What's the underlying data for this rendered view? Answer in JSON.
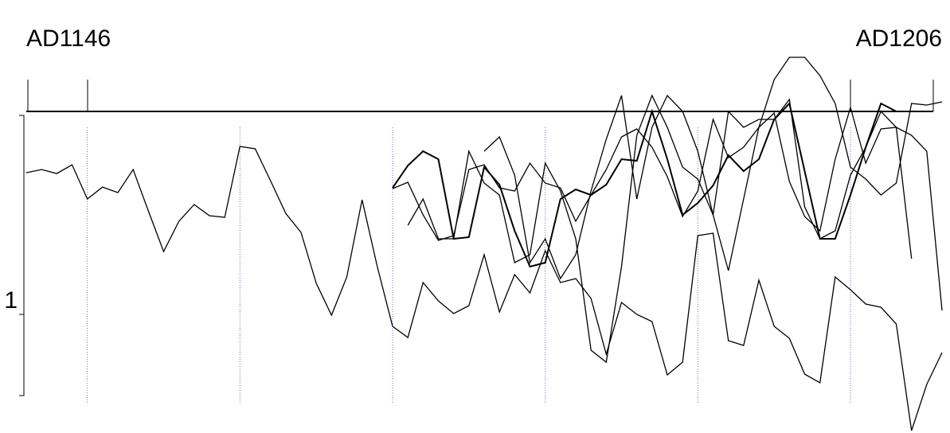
{
  "chart_data": {
    "type": "line",
    "left_label": "AD1146",
    "right_label": "AD1206",
    "x": [
      1146,
      1147,
      1148,
      1149,
      1150,
      1151,
      1152,
      1153,
      1154,
      1155,
      1156,
      1157,
      1158,
      1159,
      1160,
      1161,
      1162,
      1163,
      1164,
      1165,
      1166,
      1167,
      1168,
      1169,
      1170,
      1171,
      1172,
      1173,
      1174,
      1175,
      1176,
      1177,
      1178,
      1179,
      1180,
      1181,
      1182,
      1183,
      1184,
      1185,
      1186,
      1187,
      1188,
      1189,
      1190,
      1191,
      1192,
      1193,
      1194,
      1195,
      1196,
      1197,
      1198,
      1199,
      1200,
      1201,
      1202,
      1203,
      1204,
      1205,
      1206
    ],
    "xlim": [
      1146,
      1206
    ],
    "xticks": [
      1150,
      1160,
      1170,
      1180,
      1190,
      1200
    ],
    "ylim": [
      544,
      0
    ],
    "yticks": [
      {
        "value": 395,
        "label": "1"
      }
    ],
    "grid": true,
    "series": [
      {
        "color": "#000000",
        "values": [
          217,
          213,
          218,
          207,
          250,
          235,
          242,
          213,
          265,
          316,
          278,
          257,
          271,
          273,
          184,
          187,
          227,
          268,
          292,
          356,
          396,
          348,
          251,
          335,
          410,
          424,
          355,
          378,
          394,
          384,
          320,
          392,
          345,
          368,
          315,
          355,
          350,
          375,
          445,
          380,
          395,
          404,
          471,
          455,
          296,
          293,
          428,
          434,
          352,
          410,
          425,
          470,
          481,
          348,
          364,
          382,
          386,
          407,
          541,
          483,
          443
        ]
      },
      {
        "color": "#000000",
        "values": [
          null,
          null,
          null,
          null,
          null,
          null,
          null,
          null,
          null,
          null,
          null,
          null,
          null,
          null,
          null,
          null,
          null,
          null,
          null,
          null,
          null,
          null,
          null,
          null,
          237,
          229,
          270,
          302,
          296,
          213,
          207,
          236,
          240,
          205,
          230,
          236,
          278,
          245,
          213,
          172,
          162,
          185,
          222,
          272,
          240,
          150,
          198,
          185,
          160,
          142,
          228,
          272,
          290,
          200,
          135,
          205,
          162,
          160,
          325,
          null,
          null
        ]
      },
      {
        "color": "#000000",
        "values": [
          null,
          null,
          null,
          null,
          null,
          null,
          null,
          null,
          null,
          null,
          null,
          null,
          null,
          null,
          null,
          null,
          null,
          null,
          null,
          null,
          null,
          null,
          null,
          null,
          236,
          208,
          190,
          200,
          300,
          298,
          210,
          232,
          290,
          335,
          330,
          250,
          238,
          245,
          232,
          200,
          202,
          140,
          200,
          270,
          255,
          233,
          195,
          215,
          200,
          150,
          130,
          215,
          300,
          300,
          245,
          185,
          130,
          140,
          null,
          null,
          null
        ]
      },
      {
        "color": "#000000",
        "values": [
          null,
          null,
          null,
          null,
          null,
          null,
          null,
          null,
          null,
          null,
          null,
          null,
          null,
          null,
          null,
          null,
          null,
          null,
          null,
          null,
          null,
          null,
          null,
          null,
          null,
          283,
          250,
          300,
          300,
          190,
          230,
          245,
          330,
          320,
          205,
          240,
          300,
          440,
          455,
          335,
          170,
          120,
          160,
          210,
          225,
          270,
          340,
          250,
          160,
          100,
          72,
          72,
          95,
          130,
          210,
          225,
          245,
          230,
          130,
          132,
          128
        ]
      },
      {
        "color": "#000000",
        "values": [
          null,
          null,
          null,
          null,
          null,
          null,
          null,
          null,
          null,
          null,
          null,
          null,
          null,
          null,
          null,
          null,
          null,
          null,
          null,
          null,
          null,
          null,
          null,
          null,
          null,
          null,
          null,
          null,
          null,
          null,
          190,
          172,
          220,
          330,
          300,
          350,
          320,
          240,
          175,
          120,
          250,
          160,
          120,
          140,
          190,
          270,
          140,
          160,
          150,
          150,
          125,
          260,
          300,
          290,
          220,
          185,
          140,
          160,
          170,
          190,
          390
        ]
      }
    ]
  }
}
